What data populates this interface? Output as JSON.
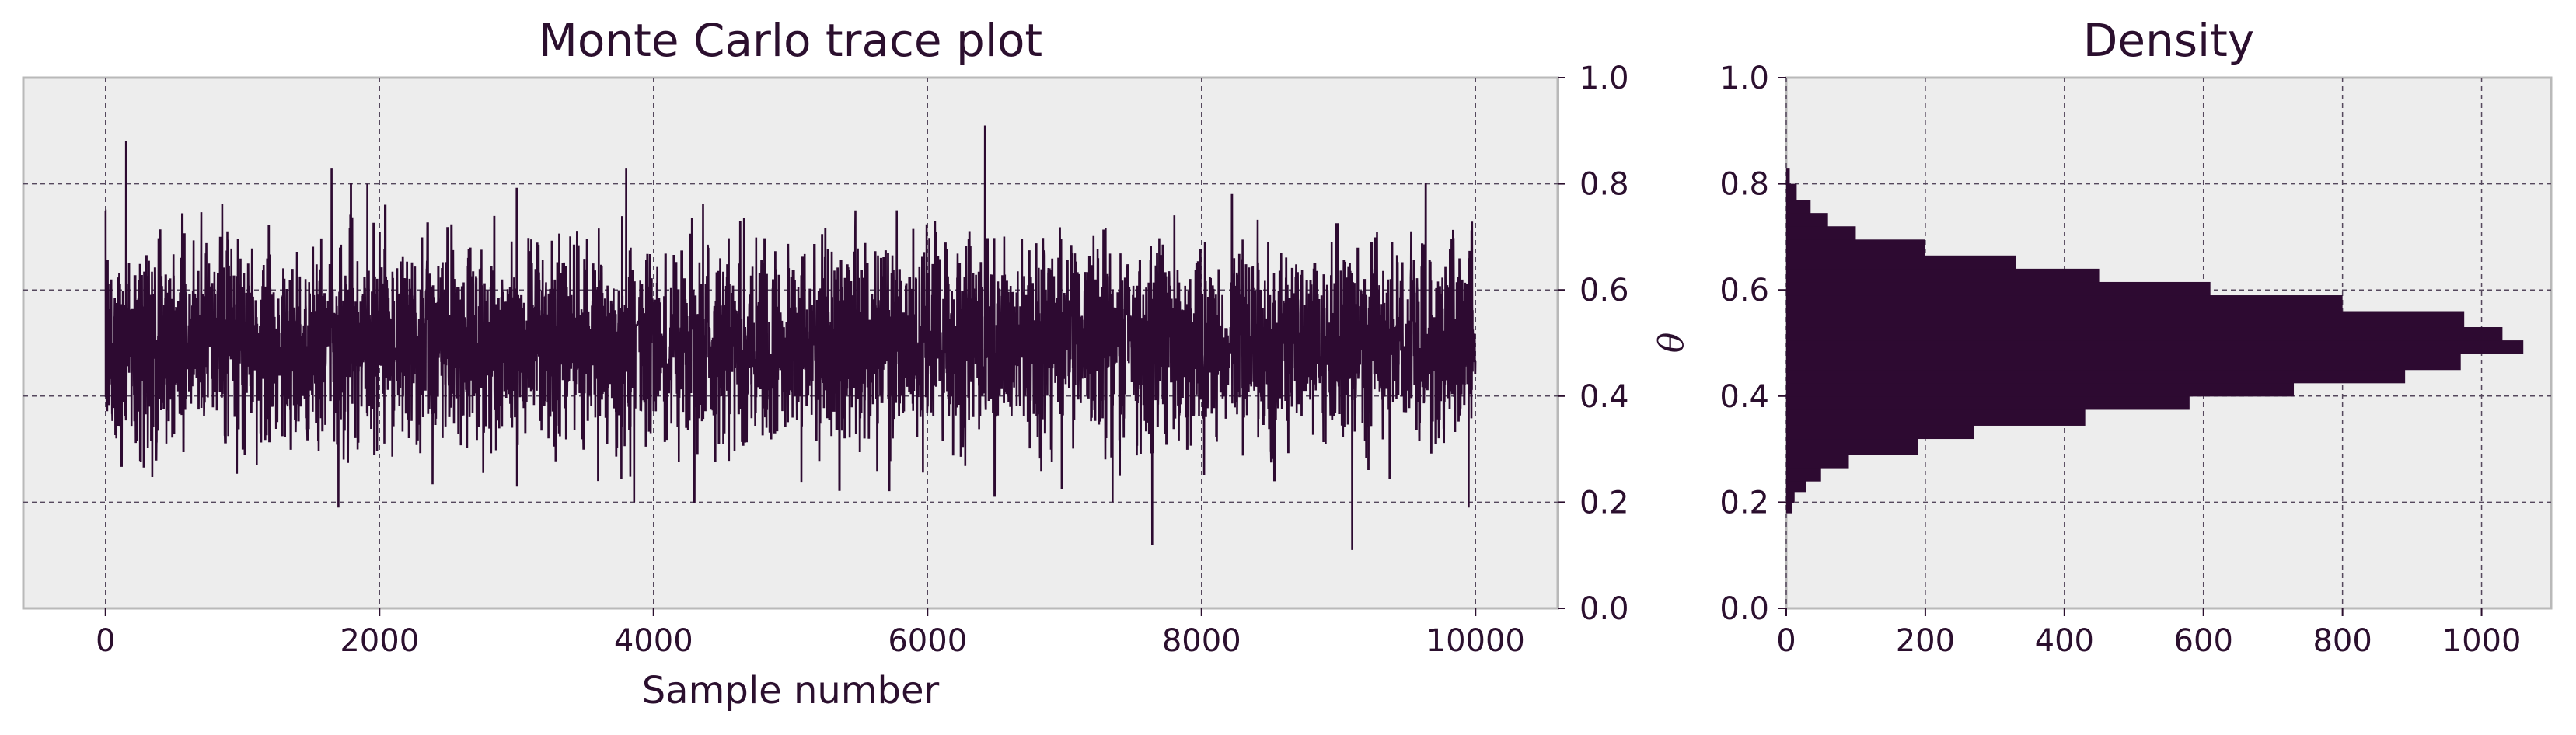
{
  "colors": {
    "background": "#ffffff",
    "plot_bg": "#ededed",
    "ink": "#2d0a31",
    "text": "#2b0f2e",
    "grid": "#55485d",
    "spine": "#b9b9b9"
  },
  "chart_data": [
    {
      "type": "line",
      "title": "Monte Carlo trace plot",
      "xlabel": "Sample number",
      "ylabel": "",
      "xlim": [
        -600,
        10600
      ],
      "ylim": [
        0.0,
        1.0
      ],
      "x_ticks": [
        0,
        2000,
        4000,
        6000,
        8000,
        10000
      ],
      "x_tick_labels": [
        "0",
        "2000",
        "4000",
        "6000",
        "8000",
        "10000"
      ],
      "y_ticks": [
        0.0,
        0.2,
        0.4,
        0.6,
        0.8,
        1.0
      ],
      "y_tick_labels": [
        "0.0",
        "0.2",
        "0.4",
        "0.6",
        "0.8",
        "1.0"
      ],
      "y_axis_side": "right",
      "grid": true,
      "series": [
        {
          "n_samples": 10000,
          "x_range": [
            0,
            10000
          ],
          "typical_band": [
            0.32,
            0.68
          ],
          "notable_points": [
            {
              "x": 150,
              "y": 0.88
            },
            {
              "x": 1650,
              "y": 0.83
            },
            {
              "x": 3800,
              "y": 0.83
            },
            {
              "x": 6420,
              "y": 0.91
            },
            {
              "x": 1700,
              "y": 0.19
            },
            {
              "x": 7640,
              "y": 0.12
            },
            {
              "x": 9100,
              "y": 0.11
            },
            {
              "x": 9950,
              "y": 0.19
            }
          ]
        }
      ]
    },
    {
      "type": "bar",
      "orientation": "horizontal",
      "title": "Density",
      "xlabel": "",
      "ylabel": "θ",
      "xlim": [
        0,
        1100
      ],
      "ylim": [
        0.0,
        1.0
      ],
      "x_ticks": [
        0,
        200,
        400,
        600,
        800,
        1000
      ],
      "x_tick_labels": [
        "0",
        "200",
        "400",
        "600",
        "800",
        "1000"
      ],
      "y_ticks": [
        0.0,
        0.2,
        0.4,
        0.6,
        0.8,
        1.0
      ],
      "y_tick_labels": [
        "0.0",
        "0.2",
        "0.4",
        "0.6",
        "0.8",
        "1.0"
      ],
      "grid": true,
      "bins": [
        {
          "low": 0.18,
          "high": 0.2,
          "count": 8
        },
        {
          "low": 0.2,
          "high": 0.22,
          "count": 12
        },
        {
          "low": 0.22,
          "high": 0.24,
          "count": 28
        },
        {
          "low": 0.24,
          "high": 0.265,
          "count": 50
        },
        {
          "low": 0.265,
          "high": 0.29,
          "count": 90
        },
        {
          "low": 0.29,
          "high": 0.32,
          "count": 190
        },
        {
          "low": 0.32,
          "high": 0.345,
          "count": 270
        },
        {
          "low": 0.345,
          "high": 0.375,
          "count": 430
        },
        {
          "low": 0.375,
          "high": 0.4,
          "count": 580
        },
        {
          "low": 0.4,
          "high": 0.425,
          "count": 730
        },
        {
          "low": 0.425,
          "high": 0.45,
          "count": 890
        },
        {
          "low": 0.45,
          "high": 0.48,
          "count": 970
        },
        {
          "low": 0.48,
          "high": 0.505,
          "count": 1060
        },
        {
          "low": 0.505,
          "high": 0.53,
          "count": 1030
        },
        {
          "low": 0.53,
          "high": 0.56,
          "count": 975
        },
        {
          "low": 0.56,
          "high": 0.59,
          "count": 800
        },
        {
          "low": 0.59,
          "high": 0.615,
          "count": 610
        },
        {
          "low": 0.615,
          "high": 0.64,
          "count": 450
        },
        {
          "low": 0.64,
          "high": 0.665,
          "count": 330
        },
        {
          "low": 0.665,
          "high": 0.695,
          "count": 200
        },
        {
          "low": 0.695,
          "high": 0.72,
          "count": 100
        },
        {
          "low": 0.72,
          "high": 0.745,
          "count": 60
        },
        {
          "low": 0.745,
          "high": 0.77,
          "count": 35
        },
        {
          "low": 0.77,
          "high": 0.8,
          "count": 15
        },
        {
          "low": 0.8,
          "high": 0.83,
          "count": 5
        }
      ]
    }
  ]
}
